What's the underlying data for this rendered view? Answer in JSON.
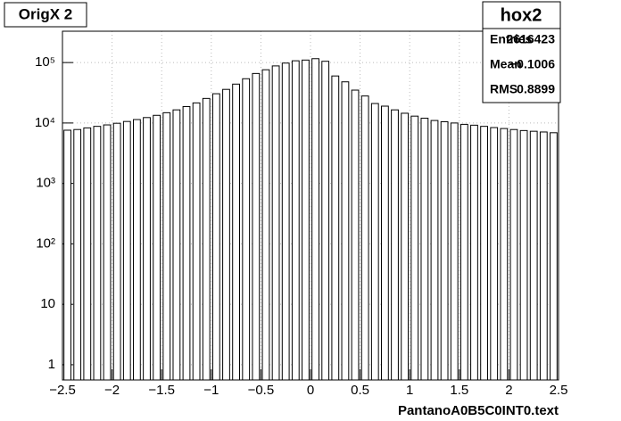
{
  "chart_data": {
    "type": "histogram",
    "label": "OrigX 2",
    "x_label": "PantanoA0B5C0INT0.text",
    "bins": [
      -2.5,
      -2.4,
      -2.3,
      -2.2,
      -2.1,
      -2.0,
      -1.9,
      -1.8,
      -1.7,
      -1.6,
      -1.5,
      -1.4,
      -1.3,
      -1.2,
      -1.1,
      -1.0,
      -0.9,
      -0.8,
      -0.7,
      -0.6,
      -0.5,
      -0.4,
      -0.3,
      -0.2,
      -0.1,
      0,
      0.1,
      0.2,
      0.3,
      0.4,
      0.5,
      0.6,
      0.7,
      0.8,
      0.9,
      1.0,
      1.1,
      1.2,
      1.3,
      1.4,
      1.5,
      1.6,
      1.7,
      1.8,
      1.9,
      2.0,
      2.1,
      2.2,
      2.3,
      2.4,
      2.5
    ],
    "values": [
      7600,
      7800,
      8300,
      8800,
      9300,
      9900,
      10600,
      11400,
      12300,
      13400,
      14800,
      16500,
      18700,
      21500,
      25500,
      30500,
      36000,
      44000,
      54000,
      66000,
      76000,
      88000,
      98000,
      107000,
      110000,
      116000,
      105000,
      60000,
      48000,
      35000,
      28000,
      21000,
      19000,
      16500,
      14500,
      13000,
      12000,
      11000,
      10500,
      10000,
      9500,
      9200,
      8800,
      8400,
      8100,
      7800,
      7500,
      7300,
      7100,
      6900
    ],
    "color": "#ffffff",
    "xlim": [
      -2.5,
      2.5
    ],
    "xticks": [
      {
        "value": -2.5,
        "label": "−2.5"
      },
      {
        "value": -2,
        "label": "−2"
      },
      {
        "value": -1.5,
        "label": "−1.5"
      },
      {
        "value": -1,
        "label": "−1"
      },
      {
        "value": -0.5,
        "label": "−0.5"
      },
      0,
      0.5,
      1,
      1.5,
      2,
      2.5
    ],
    "ylim": [
      0.56,
      330000
    ],
    "yticks": [
      1,
      10,
      {
        "value": 100,
        "label": "10²"
      },
      {
        "value": 1000,
        "label": "10³"
      },
      {
        "value": 10000,
        "label": "10⁴"
      },
      {
        "value": 100000,
        "label": "10⁵"
      }
    ],
    "log_y": true,
    "grid": true,
    "stats": {
      "title": "hox2",
      "rows": [
        [
          "Entries",
          "2616423"
        ],
        [
          "Mean",
          "−0.1006"
        ],
        [
          "RMS",
          "0.8899"
        ]
      ]
    }
  }
}
